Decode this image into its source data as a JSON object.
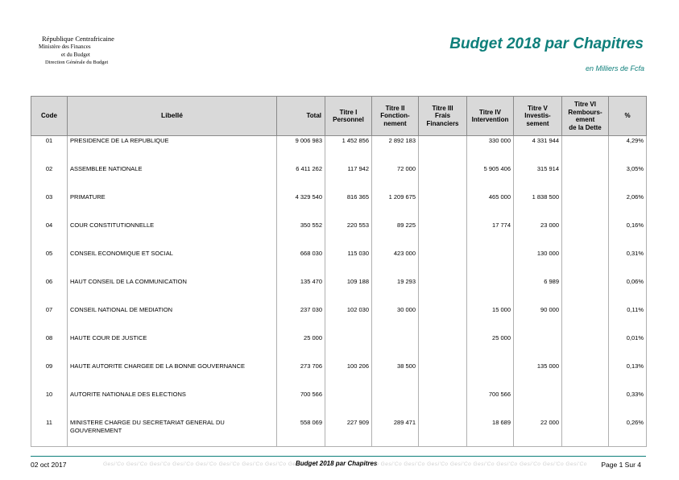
{
  "header": {
    "country": "République Centrafricaine",
    "ministry_line1": "Ministère des Finances",
    "ministry_line2": "et du Budget",
    "direction": "Direction Générale du Budget",
    "title": "Budget 2018 par Chapitres",
    "unit": "en Milliers de Fcfa"
  },
  "table": {
    "headers": {
      "code": "Code",
      "libelle": "Libellé",
      "total": "Total",
      "t1_a": "Titre I",
      "t1_b": "Personnel",
      "t2_a": "Titre II",
      "t2_b": "Fonction-",
      "t2_c": "nement",
      "t3_a": "Titre III",
      "t3_b": "Frais",
      "t3_c": "Financiers",
      "t4_a": "Titre IV",
      "t4_b": "Intervention",
      "t5_a": "Titre V",
      "t5_b": "Investis-",
      "t5_c": "sement",
      "t6_a": "Titre VI",
      "t6_b": "Rembours-",
      "t6_c": "ement",
      "t6_d": "de la Dette",
      "pct": "%"
    },
    "rows": [
      {
        "code": "01",
        "libelle": "PRESIDENCE DE LA REPUBLIQUE",
        "total": "9 006 983",
        "t1": "1 452 856",
        "t2": "2 892 183",
        "t3": "",
        "t4": "330 000",
        "t5": "4 331 944",
        "t6": "",
        "pct": "4,29%"
      },
      {
        "code": "02",
        "libelle": "ASSEMBLEE NATIONALE",
        "total": "6 411 262",
        "t1": "117 942",
        "t2": "72 000",
        "t3": "",
        "t4": "5 905 406",
        "t5": "315 914",
        "t6": "",
        "pct": "3,05%"
      },
      {
        "code": "03",
        "libelle": "PRIMATURE",
        "total": "4 329 540",
        "t1": "816 365",
        "t2": "1 209 675",
        "t3": "",
        "t4": "465 000",
        "t5": "1 838 500",
        "t6": "",
        "pct": "2,06%"
      },
      {
        "code": "04",
        "libelle": "COUR CONSTITUTIONNELLE",
        "total": "350 552",
        "t1": "220 553",
        "t2": "89 225",
        "t3": "",
        "t4": "17 774",
        "t5": "23 000",
        "t6": "",
        "pct": "0,16%"
      },
      {
        "code": "05",
        "libelle": "CONSEIL ECONOMIQUE ET SOCIAL",
        "total": "668 030",
        "t1": "115 030",
        "t2": "423 000",
        "t3": "",
        "t4": "",
        "t5": "130 000",
        "t6": "",
        "pct": "0,31%"
      },
      {
        "code": "06",
        "libelle": "HAUT CONSEIL DE LA COMMUNICATION",
        "total": "135 470",
        "t1": "109 188",
        "t2": "19 293",
        "t3": "",
        "t4": "",
        "t5": "6 989",
        "t6": "",
        "pct": "0,06%"
      },
      {
        "code": "07",
        "libelle": "CONSEIL NATIONAL DE MEDIATION",
        "total": "237 030",
        "t1": "102 030",
        "t2": "30 000",
        "t3": "",
        "t4": "15 000",
        "t5": "90 000",
        "t6": "",
        "pct": "0,11%"
      },
      {
        "code": "08",
        "libelle": "HAUTE COUR DE JUSTICE",
        "total": "25 000",
        "t1": "",
        "t2": "",
        "t3": "",
        "t4": "25 000",
        "t5": "",
        "t6": "",
        "pct": "0,01%"
      },
      {
        "code": "09",
        "libelle": "HAUTE AUTORITE CHARGEE DE LA BONNE GOUVERNANCE",
        "total": "273 706",
        "t1": "100 206",
        "t2": "38 500",
        "t3": "",
        "t4": "",
        "t5": "135 000",
        "t6": "",
        "pct": "0,13%"
      },
      {
        "code": "10",
        "libelle": "AUTORITE NATIONALE DES ELECTIONS",
        "total": "700 566",
        "t1": "",
        "t2": "",
        "t3": "",
        "t4": "700 566",
        "t5": "",
        "t6": "",
        "pct": "0,33%"
      },
      {
        "code": "11",
        "libelle": "MINISTERE CHARGE DU SECRETARIAT GENERAL DU GOUVERNEMENT",
        "total": "558 069",
        "t1": "227 909",
        "t2": "289 471",
        "t3": "",
        "t4": "18 689",
        "t5": "22 000",
        "t6": "",
        "pct": "0,26%"
      }
    ]
  },
  "footer": {
    "date": "02 oct 2017",
    "watermark": "Gesi'Co  Gesi'Co  Gesi'Co  Gesi'Co  Gesi'Co  Gesi'Co  Gesi'Co  Gesi'Co  Gesi'Co  Gesi'Co  Gesi'Co  Gesi'Co  Gesi'Co  Gesi'Co  Gesi'Co  Gesi'Co  Gesi'Co  Gesi'Co  Gesi'Co  Gesi'Co  Gesi'Co",
    "title": "Budget 2018 par Chapitres",
    "page": "Page 1 Sur 4"
  }
}
